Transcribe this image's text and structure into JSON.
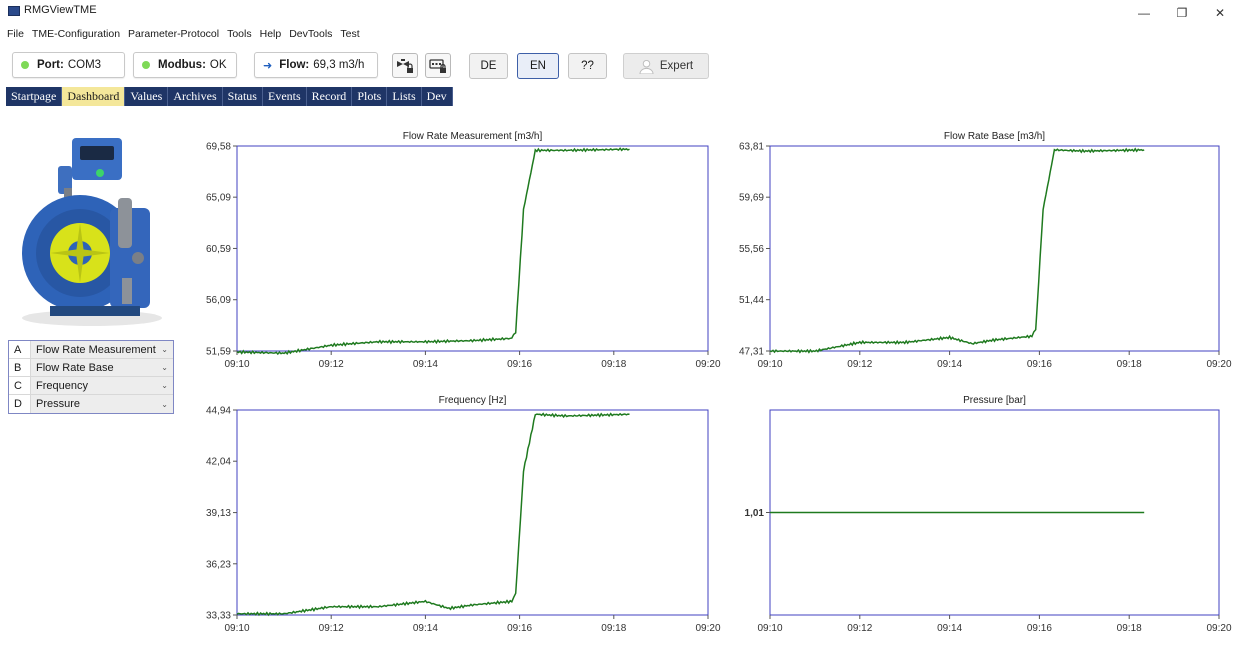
{
  "window": {
    "title": "RMGViewTME",
    "controls": {
      "minimize": "—",
      "maximize": "❐",
      "close": "✕"
    }
  },
  "menu": [
    "File",
    "TME-Configuration",
    "Parameter-Protocol",
    "Tools",
    "Help",
    "DevTools",
    "Test"
  ],
  "toolbar": {
    "port": {
      "label": "Port:",
      "value": "COM3",
      "status_color": "#7ed957"
    },
    "modbus": {
      "label": "Modbus:",
      "value": "OK",
      "status_color": "#7ed957"
    },
    "flow": {
      "label": "Flow:",
      "value": "69,3 m3/h"
    },
    "lock1_icon": "valve-lock-icon",
    "lock2_icon": "keypad-lock-icon",
    "lang_de": "DE",
    "lang_en": "EN",
    "help": "??",
    "expert": "Expert"
  },
  "tabs": [
    {
      "label": "Startpage",
      "active": false
    },
    {
      "label": "Dashboard",
      "active": true
    },
    {
      "label": "Values",
      "active": false
    },
    {
      "label": "Archives",
      "active": false
    },
    {
      "label": "Status",
      "active": false
    },
    {
      "label": "Events",
      "active": false
    },
    {
      "label": "Record",
      "active": false
    },
    {
      "label": "Plots",
      "active": false
    },
    {
      "label": "Lists",
      "active": false
    },
    {
      "label": "Dev",
      "active": false
    }
  ],
  "legend": [
    {
      "letter": "A",
      "label": "Flow Rate Measurement"
    },
    {
      "letter": "B",
      "label": "Flow Rate Base"
    },
    {
      "letter": "C",
      "label": "Frequency"
    },
    {
      "letter": "D",
      "label": "Pressure"
    }
  ],
  "colors": {
    "accent": "#1f3566",
    "active_tab": "#f4e79a",
    "series": "#1f7a1f",
    "plot_border": "#4040c0"
  },
  "chart_data": [
    {
      "type": "line",
      "title": "Flow Rate Measurement [m3/h]",
      "x_ticks": [
        "09:10",
        "09:12",
        "09:14",
        "09:16",
        "09:18",
        "09:20"
      ],
      "y_ticks": [
        "51,59",
        "56,09",
        "60,59",
        "65,09",
        "69,58"
      ],
      "ylim": [
        51.59,
        69.58
      ],
      "xlim": [
        "09:10",
        "09:20"
      ],
      "series": [
        {
          "points": [
            [
              "09:10",
              51.5
            ],
            [
              "09:11",
              51.4
            ],
            [
              "09:12",
              52.1
            ],
            [
              "09:13",
              52.4
            ],
            [
              "09:14",
              52.4
            ],
            [
              "09:15",
              52.5
            ],
            [
              "09:15:50",
              52.7
            ],
            [
              "09:15:55",
              53.2
            ],
            [
              "09:16:05",
              64.0
            ],
            [
              "09:16:20",
              69.2
            ],
            [
              "09:17",
              69.2
            ],
            [
              "09:18:20",
              69.3
            ]
          ]
        }
      ]
    },
    {
      "type": "line",
      "title": "Flow Rate Base [m3/h]",
      "x_ticks": [
        "09:10",
        "09:12",
        "09:14",
        "09:16",
        "09:18",
        "09:20"
      ],
      "y_ticks": [
        "47,31",
        "51,44",
        "55,56",
        "59,69",
        "63,81"
      ],
      "ylim": [
        47.31,
        63.81
      ],
      "xlim": [
        "09:10",
        "09:20"
      ],
      "series": [
        {
          "points": [
            [
              "09:10",
              47.3
            ],
            [
              "09:11",
              47.3
            ],
            [
              "09:12",
              48.0
            ],
            [
              "09:13",
              48.0
            ],
            [
              "09:14",
              48.4
            ],
            [
              "09:14:30",
              47.9
            ],
            [
              "09:15",
              48.2
            ],
            [
              "09:15:50",
              48.5
            ],
            [
              "09:15:55",
              49.0
            ],
            [
              "09:16:05",
              58.7
            ],
            [
              "09:16:20",
              63.5
            ],
            [
              "09:17",
              63.4
            ],
            [
              "09:18:20",
              63.5
            ]
          ]
        }
      ]
    },
    {
      "type": "line",
      "title": "Frequency [Hz]",
      "x_ticks": [
        "09:10",
        "09:12",
        "09:14",
        "09:16",
        "09:18",
        "09:20"
      ],
      "y_ticks": [
        "33,33",
        "36,23",
        "39,13",
        "42,04",
        "44,94"
      ],
      "ylim": [
        33.33,
        44.94
      ],
      "xlim": [
        "09:10",
        "09:20"
      ],
      "series": [
        {
          "points": [
            [
              "09:10",
              33.4
            ],
            [
              "09:11",
              33.4
            ],
            [
              "09:12",
              33.8
            ],
            [
              "09:13",
              33.8
            ],
            [
              "09:14",
              34.1
            ],
            [
              "09:14:30",
              33.7
            ],
            [
              "09:15",
              33.9
            ],
            [
              "09:15:50",
              34.1
            ],
            [
              "09:15:55",
              34.5
            ],
            [
              "09:16:05",
              41.5
            ],
            [
              "09:16:20",
              44.7
            ],
            [
              "09:17",
              44.6
            ],
            [
              "09:18:20",
              44.7
            ]
          ]
        }
      ]
    },
    {
      "type": "line",
      "title": "Pressure [bar]",
      "x_ticks": [
        "09:10",
        "09:12",
        "09:14",
        "09:16",
        "09:18",
        "09:20"
      ],
      "y_ticks": [
        "1,01"
      ],
      "ylim": [
        0.96,
        1.06
      ],
      "xlim": [
        "09:10",
        "09:20"
      ],
      "series": [
        {
          "points": [
            [
              "09:10",
              1.01
            ],
            [
              "09:18:20",
              1.01
            ]
          ]
        }
      ]
    }
  ]
}
